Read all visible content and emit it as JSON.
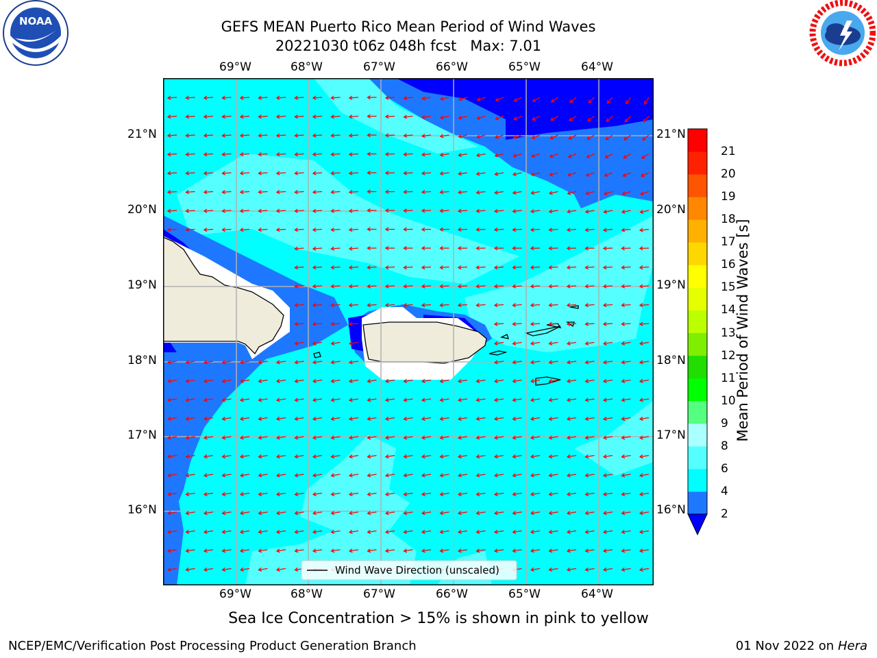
{
  "title": {
    "line1": "GEFS MEAN Puerto Rico Mean Period of Wind Waves",
    "line2": "20221030 t06z 048h fcst   Max: 7.01"
  },
  "logos": {
    "left": {
      "name": "NOAA",
      "text": "NOAA"
    },
    "right": {
      "name": "National Weather Service"
    }
  },
  "map": {
    "lon_labels": [
      "69°W",
      "68°W",
      "67°W",
      "66°W",
      "65°W",
      "64°W"
    ],
    "lat_labels": [
      "21°N",
      "20°N",
      "19°N",
      "18°N",
      "17°N",
      "16°N"
    ],
    "legend_label": "Wind Wave Direction (unscaled)",
    "colors": {
      "land": "#efecdc",
      "level_2_4": "#1e78ff",
      "level_below_2": "#0000ff",
      "level_4_6": "#00ffff",
      "level_6_8": "#55ffff",
      "arrow": "#ff0000",
      "grid": "#b0b0b0"
    }
  },
  "colorbar": {
    "label": "Mean Period of Wind Waves [s]",
    "ticks": [
      "2",
      "4",
      "6",
      "8",
      "9",
      "10",
      "11",
      "12",
      "13",
      "14",
      "15",
      "16",
      "17",
      "18",
      "19",
      "20",
      "21"
    ],
    "colors": [
      "#1e78ff",
      "#00ffff",
      "#55ffff",
      "#aaffff",
      "#55ff7f",
      "#00ff00",
      "#22dd00",
      "#7fee00",
      "#bbff00",
      "#e6ff00",
      "#ffff00",
      "#ffd700",
      "#ffb000",
      "#ff8800",
      "#ff5500",
      "#ff2200",
      "#ff0000"
    ],
    "extend_color": "#0000ff"
  },
  "caption": "Sea Ice Concentration > 15% is shown in pink to yellow",
  "footer": {
    "left": "NCEP/EMC/Verification Post Processing Product Generation Branch",
    "right_date": "01 Nov 2022 on",
    "right_machine": "Hera"
  }
}
